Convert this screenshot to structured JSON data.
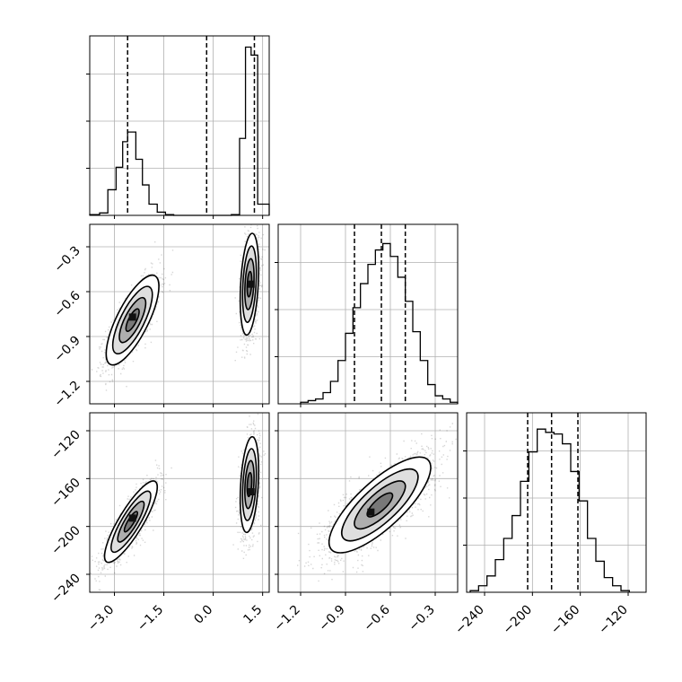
{
  "chart_data": {
    "type": "corner",
    "grid": true,
    "parameters": [
      {
        "ticks": [
          -3.0,
          -1.5,
          0.0,
          1.5
        ],
        "tick_labels": [
          "−3.0",
          "−1.5",
          "0.0",
          "1.5"
        ],
        "range": [
          -3.75,
          1.7
        ]
      },
      {
        "ticks": [
          -1.2,
          -0.9,
          -0.6,
          -0.3
        ],
        "tick_labels": [
          "−1.2",
          "−0.9",
          "−0.6",
          "−0.3"
        ],
        "range": [
          -1.35,
          -0.15
        ]
      },
      {
        "ticks": [
          -240,
          -200,
          -160,
          -120
        ],
        "tick_labels": [
          "−240",
          "−200",
          "−160",
          "−120"
        ],
        "range": [
          -255,
          -105
        ]
      }
    ],
    "diagonal": [
      {
        "parameter": 0,
        "quantiles": [
          -2.6,
          -0.2,
          1.25
        ],
        "bins": [
          {
            "x0": -3.75,
            "x1": -3.45,
            "h": 0.005
          },
          {
            "x0": -3.45,
            "x1": -3.2,
            "h": 0.015
          },
          {
            "x0": -3.2,
            "x1": -2.95,
            "h": 0.16
          },
          {
            "x0": -2.95,
            "x1": -2.75,
            "h": 0.3
          },
          {
            "x0": -2.75,
            "x1": -2.6,
            "h": 0.46
          },
          {
            "x0": -2.6,
            "x1": -2.35,
            "h": 0.52
          },
          {
            "x0": -2.35,
            "x1": -2.15,
            "h": 0.35
          },
          {
            "x0": -2.15,
            "x1": -1.95,
            "h": 0.19
          },
          {
            "x0": -1.95,
            "x1": -1.7,
            "h": 0.07
          },
          {
            "x0": -1.7,
            "x1": -1.45,
            "h": 0.02
          },
          {
            "x0": -1.45,
            "x1": -1.2,
            "h": 0.005
          },
          {
            "x0": -1.2,
            "x1": 0.55,
            "h": 0.0
          },
          {
            "x0": 0.55,
            "x1": 0.8,
            "h": 0.005
          },
          {
            "x0": 0.8,
            "x1": 0.98,
            "h": 0.48
          },
          {
            "x0": 0.98,
            "x1": 1.15,
            "h": 1.05
          },
          {
            "x0": 1.15,
            "x1": 1.35,
            "h": 1.0
          },
          {
            "x0": 1.35,
            "x1": 1.7,
            "h": 0.07
          }
        ],
        "ymax": 1.12
      },
      {
        "parameter": 1,
        "quantiles": [
          -0.84,
          -0.66,
          -0.5
        ],
        "bins": [
          {
            "x0": -1.2,
            "x1": -1.15,
            "h": 0.01
          },
          {
            "x0": -1.15,
            "x1": -1.1,
            "h": 0.02
          },
          {
            "x0": -1.1,
            "x1": -1.05,
            "h": 0.03
          },
          {
            "x0": -1.05,
            "x1": -1.0,
            "h": 0.07
          },
          {
            "x0": -1.0,
            "x1": -0.95,
            "h": 0.14
          },
          {
            "x0": -0.95,
            "x1": -0.9,
            "h": 0.27
          },
          {
            "x0": -0.9,
            "x1": -0.85,
            "h": 0.44
          },
          {
            "x0": -0.85,
            "x1": -0.8,
            "h": 0.6
          },
          {
            "x0": -0.8,
            "x1": -0.75,
            "h": 0.75
          },
          {
            "x0": -0.75,
            "x1": -0.7,
            "h": 0.87
          },
          {
            "x0": -0.7,
            "x1": -0.65,
            "h": 0.96
          },
          {
            "x0": -0.65,
            "x1": -0.6,
            "h": 1.0
          },
          {
            "x0": -0.6,
            "x1": -0.55,
            "h": 0.92
          },
          {
            "x0": -0.55,
            "x1": -0.5,
            "h": 0.79
          },
          {
            "x0": -0.5,
            "x1": -0.45,
            "h": 0.64
          },
          {
            "x0": -0.45,
            "x1": -0.4,
            "h": 0.45
          },
          {
            "x0": -0.4,
            "x1": -0.35,
            "h": 0.27
          },
          {
            "x0": -0.35,
            "x1": -0.3,
            "h": 0.12
          },
          {
            "x0": -0.3,
            "x1": -0.25,
            "h": 0.05
          },
          {
            "x0": -0.25,
            "x1": -0.2,
            "h": 0.03
          },
          {
            "x0": -0.2,
            "x1": -0.15,
            "h": 0.01
          }
        ],
        "ymax": 1.12
      },
      {
        "parameter": 2,
        "quantiles": [
          -204,
          -184,
          -162
        ],
        "bins": [
          {
            "x0": -252,
            "x1": -245,
            "h": 0.01
          },
          {
            "x0": -245,
            "x1": -238,
            "h": 0.04
          },
          {
            "x0": -238,
            "x1": -231,
            "h": 0.1
          },
          {
            "x0": -231,
            "x1": -224,
            "h": 0.2
          },
          {
            "x0": -224,
            "x1": -217,
            "h": 0.33
          },
          {
            "x0": -217,
            "x1": -210,
            "h": 0.47
          },
          {
            "x0": -210,
            "x1": -203,
            "h": 0.68
          },
          {
            "x0": -203,
            "x1": -196,
            "h": 0.86
          },
          {
            "x0": -196,
            "x1": -189,
            "h": 1.0
          },
          {
            "x0": -189,
            "x1": -182,
            "h": 0.98
          },
          {
            "x0": -182,
            "x1": -175,
            "h": 0.97
          },
          {
            "x0": -175,
            "x1": -168,
            "h": 0.91
          },
          {
            "x0": -168,
            "x1": -161,
            "h": 0.74
          },
          {
            "x0": -161,
            "x1": -154,
            "h": 0.56
          },
          {
            "x0": -154,
            "x1": -147,
            "h": 0.33
          },
          {
            "x0": -147,
            "x1": -140,
            "h": 0.19
          },
          {
            "x0": -140,
            "x1": -133,
            "h": 0.09
          },
          {
            "x0": -133,
            "x1": -126,
            "h": 0.04
          },
          {
            "x0": -126,
            "x1": -119,
            "h": 0.01
          }
        ],
        "ymax": 1.1
      }
    ],
    "pairs": [
      {
        "x_param": 0,
        "y_param": 1,
        "modes": [
          {
            "cx": -2.45,
            "cy": -0.79,
            "sx": 0.4,
            "sy": 0.15,
            "rho": 0.75,
            "weight": 0.5,
            "peak": [
              -2.45,
              -0.77
            ]
          },
          {
            "cx": 1.1,
            "cy": -0.55,
            "sx": 0.14,
            "sy": 0.17,
            "rho": 0.3,
            "weight": 0.5,
            "peak": [
              1.15,
              -0.55
            ]
          }
        ]
      },
      {
        "x_param": 0,
        "y_param": 2,
        "modes": [
          {
            "cx": -2.5,
            "cy": -196,
            "sx": 0.4,
            "sy": 17,
            "rho": 0.85,
            "weight": 0.5,
            "peak": [
              -2.45,
              -193
            ]
          },
          {
            "cx": 1.1,
            "cy": -165,
            "sx": 0.14,
            "sy": 20,
            "rho": 0.3,
            "weight": 0.5,
            "peak": [
              1.15,
              -171
            ]
          }
        ]
      },
      {
        "x_param": 1,
        "y_param": 2,
        "modes": [
          {
            "cx": -0.67,
            "cy": -182,
            "sx": 0.17,
            "sy": 20,
            "rho": 0.78,
            "weight": 1.0,
            "peak": [
              -0.73,
              -188
            ]
          }
        ]
      }
    ]
  }
}
